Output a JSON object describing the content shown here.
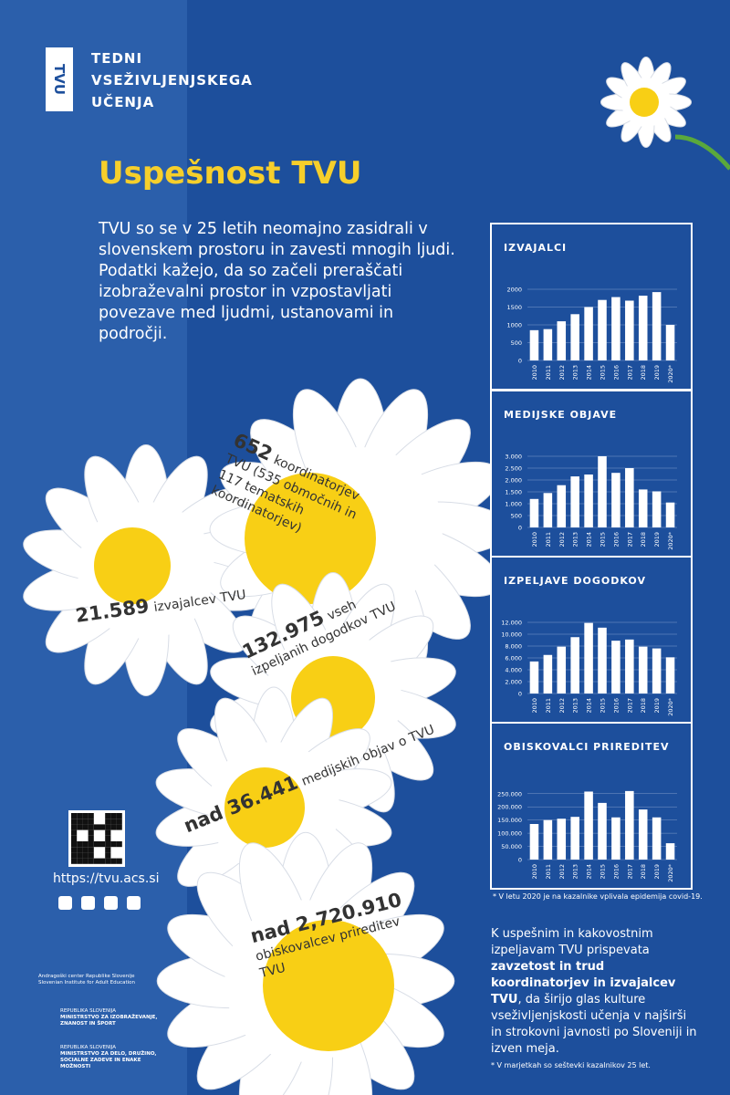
{
  "logo": {
    "mark": "TVU",
    "lines": [
      "TEDNI",
      "VSEŽIVLJENJSKEGA",
      "UČENJA"
    ]
  },
  "heading": "Uspešnost TVU",
  "intro": "TVU so se v 25 letih neomajno zasidrali v slovenskem prostoru in zavesti mnogih ljudi. Podatki kažejo, da so začeli preraščati izobraževalni prostor in vzpostavljati povezave med ljudmi, ustanovami in področji.",
  "flowers": [
    {
      "number": "652",
      "text": "koordinatorjev TVU (535 območnih in 117 tematskih koordinatorjev)"
    },
    {
      "number": "21.589",
      "text": "izvajalcev TVU"
    },
    {
      "number": "132.975",
      "text": "vseh izpeljanih dogodkov TVU"
    },
    {
      "number": "nad 36.441",
      "text": "medijskih objav o TVU"
    },
    {
      "number": "nad 2,720.910",
      "text": "obiskovalcev prireditev TVU"
    }
  ],
  "chart_data": [
    {
      "type": "bar",
      "title": "IZVAJALCI",
      "color": "#ffffff",
      "grid": true,
      "categories": [
        "2010",
        "2011",
        "2012",
        "2013",
        "2014",
        "2015",
        "2016",
        "2017",
        "2018",
        "2019",
        "2020*"
      ],
      "values": [
        850,
        880,
        1100,
        1300,
        1500,
        1700,
        1780,
        1680,
        1820,
        1920,
        1000
      ],
      "ylim": [
        0,
        2000
      ],
      "yticks": [
        0,
        500,
        1000,
        1500,
        2000
      ]
    },
    {
      "type": "bar",
      "title": "MEDIJSKE OBJAVE",
      "color": "#ffffff",
      "grid": true,
      "categories": [
        "2010",
        "2011",
        "2012",
        "2013",
        "2014",
        "2015",
        "2016",
        "2017",
        "2018",
        "2019",
        "2020*"
      ],
      "values": [
        1200,
        1450,
        1780,
        2150,
        2230,
        3000,
        2300,
        2500,
        1600,
        1520,
        1050
      ],
      "ylim": [
        0,
        3000
      ],
      "yticks": [
        0,
        500,
        {
          "value": 1000,
          "label": "1.000"
        },
        {
          "value": 1500,
          "label": "1.500"
        },
        {
          "value": 2000,
          "label": "2.000"
        },
        {
          "value": 2500,
          "label": "2.500"
        },
        {
          "value": 3000,
          "label": "3.000"
        }
      ]
    },
    {
      "type": "bar",
      "title": "IZPELJAVE DOGODKOV",
      "color": "#ffffff",
      "grid": true,
      "categories": [
        "2010",
        "2011",
        "2012",
        "2013",
        "2014",
        "2015",
        "2016",
        "2017",
        "2018",
        "2019",
        "2020*"
      ],
      "values": [
        5400,
        6500,
        7900,
        9500,
        11900,
        11100,
        8900,
        9100,
        7900,
        7600,
        6100
      ],
      "ylim": [
        0,
        12000
      ],
      "yticks": [
        0,
        {
          "value": 2000,
          "label": "2.000"
        },
        {
          "value": 4000,
          "label": "4.000"
        },
        {
          "value": 6000,
          "label": "6.000"
        },
        {
          "value": 8000,
          "label": "8.000"
        },
        {
          "value": 10000,
          "label": "10.000"
        },
        {
          "value": 12000,
          "label": "12.000"
        }
      ]
    },
    {
      "type": "bar",
      "title": "OBISKOVALCI PRIREDITEV",
      "color": "#ffffff",
      "grid": true,
      "categories": [
        "2010",
        "2011",
        "2012",
        "2013",
        "2014",
        "2015",
        "2016",
        "2017",
        "2018",
        "2019",
        "2020*"
      ],
      "values": [
        135000,
        150000,
        155000,
        162000,
        258000,
        215000,
        160000,
        260000,
        190000,
        160000,
        62000
      ],
      "ylim": [
        0,
        270000
      ],
      "yticks": [
        0,
        {
          "value": 50000,
          "label": "50.000"
        },
        {
          "value": 100000,
          "label": "100.000"
        },
        {
          "value": 150000,
          "label": "150.000"
        },
        {
          "value": 200000,
          "label": "200.000"
        },
        {
          "value": 250000,
          "label": "250.000"
        }
      ]
    }
  ],
  "chart_note": "* V letu 2020 je na kazalnike vplivala epidemija covid-19.",
  "url": "https://tvu.acs.si",
  "closing": {
    "before": "K uspešnim in kakovostnim izpeljavam TVU prispevata ",
    "bold": "zavzetost in trud koordinatorjev in izvajalcev TVU",
    "after": ", da širijo glas kulture vseživljenjskosti učenja v najširši in strokovni javnosti po Sloveniji in izven meja."
  },
  "closing_note": "* V marjetkah so seštevki kazalnikov 25 let.",
  "partners": {
    "acs": [
      "Andragoški center Republike Slovenije",
      "Slovenian Institute for Adult Education"
    ],
    "ministry1": [
      "REPUBLIKA SLOVENIJA",
      "MINISTRSTVO ZA IZOBRAŽEVANJE, ZNANOST IN ŠPORT"
    ],
    "ministry2": [
      "REPUBLIKA SLOVENIJA",
      "MINISTRSTVO ZA DELO, DRUŽINO, SOCIALNE ZADEVE IN ENAKE MOŽNOSTI"
    ]
  }
}
